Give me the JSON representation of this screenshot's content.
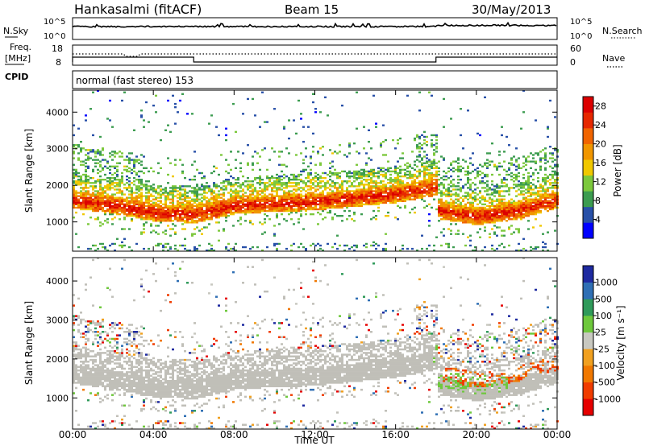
{
  "header": {
    "station": "Hankasalmi (fitACF)",
    "beam": "Beam 15",
    "date": "30/May/2013"
  },
  "sky_panel": {
    "left_label": "N.Sky",
    "right_label": "N.Search",
    "left_ticks": [
      "10^5",
      "10^0"
    ],
    "right_ticks": [
      "10^5",
      "10^0"
    ]
  },
  "freq_panel": {
    "label_line1": "Freq.",
    "label_line2": "[MHz]",
    "right_label": "Nave",
    "left_ticks": [
      "18",
      "8"
    ],
    "right_ticks": [
      "60",
      "0"
    ]
  },
  "cpid_panel": {
    "label": "CPID",
    "mode": "normal (fast stereo) 153"
  },
  "x_axis": {
    "label": "Time UT",
    "ticks": [
      "00:00",
      "04:00",
      "08:00",
      "12:00",
      "16:00",
      "20:00",
      "00:00"
    ]
  },
  "colors": {
    "power_scale": [
      "#0000ff",
      "#2850a8",
      "#3c9c50",
      "#7cc83c",
      "#f0c800",
      "#f09600",
      "#f06400",
      "#e62800",
      "#dc0000"
    ],
    "velocity_scale": [
      "#1e2aa0",
      "#2f6fb4",
      "#2f9a5a",
      "#6ec83c",
      "#c8c8c0",
      "#f0a020",
      "#f07800",
      "#f03c00",
      "#e60000"
    ],
    "ground_scatter": "#c0bfb8"
  },
  "chart_data": [
    {
      "type": "heatmap",
      "title": "Power",
      "xlabel": "Time UT",
      "ylabel": "Slant Range [km]",
      "x_ticks": [
        "00:00",
        "04:00",
        "08:00",
        "12:00",
        "16:00",
        "20:00",
        "00:00"
      ],
      "y_ticks": [
        1000,
        2000,
        3000,
        4000
      ],
      "ylim": [
        200,
        4600
      ],
      "xlim_hours": [
        0,
        24
      ],
      "colorbar": {
        "label": "Power [dB]",
        "ticks": [
          4,
          8,
          12,
          16,
          20,
          24,
          28
        ],
        "range": [
          0,
          30
        ]
      },
      "echo_band_center_km": [
        {
          "t": 0,
          "range": 1600
        },
        {
          "t": 2,
          "range": 1450
        },
        {
          "t": 4,
          "range": 1250
        },
        {
          "t": 6,
          "range": 1200
        },
        {
          "t": 8,
          "range": 1450
        },
        {
          "t": 12,
          "range": 1550
        },
        {
          "t": 16,
          "range": 1750
        },
        {
          "t": 18,
          "range": 1950
        },
        {
          "t": 18.1,
          "range": 1300
        },
        {
          "t": 20,
          "range": 1150
        },
        {
          "t": 22,
          "range": 1300
        },
        {
          "t": 24,
          "range": 1600
        }
      ]
    },
    {
      "type": "heatmap",
      "title": "Velocity",
      "xlabel": "Time UT",
      "ylabel": "Slant Range [km]",
      "x_ticks": [
        "00:00",
        "04:00",
        "08:00",
        "12:00",
        "16:00",
        "20:00",
        "00:00"
      ],
      "y_ticks": [
        1000,
        2000,
        3000,
        4000
      ],
      "ylim": [
        200,
        4600
      ],
      "xlim_hours": [
        0,
        24
      ],
      "colorbar": {
        "label": "Velocity [m s⁻¹]",
        "ticks": [
          1000,
          500,
          100,
          25,
          -25,
          -100,
          -500,
          -1000
        ]
      }
    }
  ]
}
